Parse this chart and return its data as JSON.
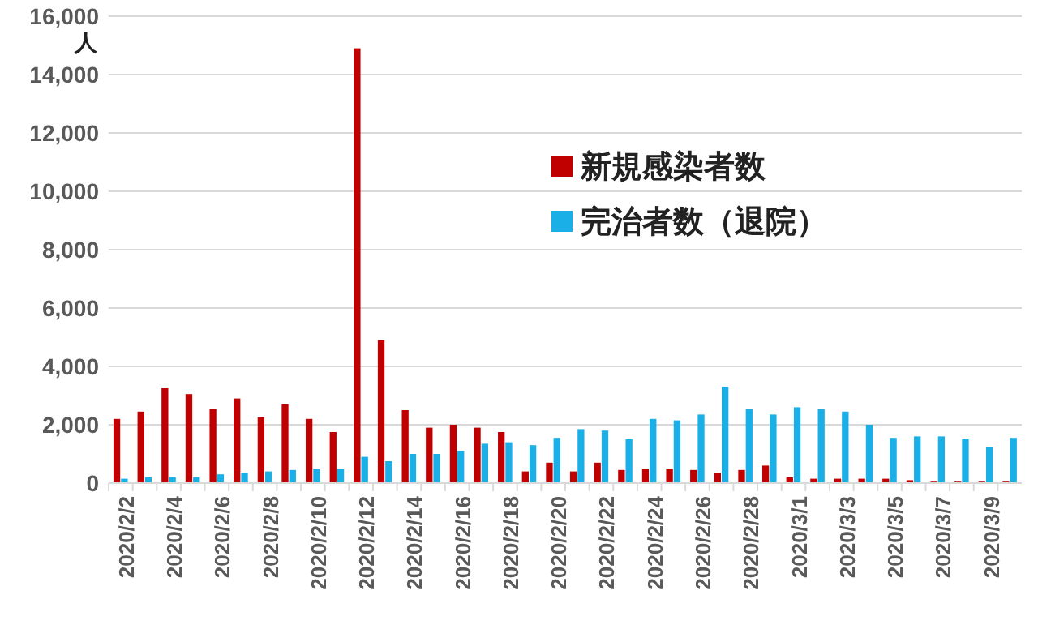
{
  "chart_data": {
    "type": "bar",
    "ylabel": "人",
    "categories": [
      "2020/2/2",
      null,
      "2020/2/4",
      null,
      "2020/2/6",
      null,
      "2020/2/8",
      null,
      "2020/2/10",
      null,
      "2020/2/12",
      null,
      "2020/2/14",
      null,
      "2020/2/16",
      null,
      "2020/2/18",
      null,
      "2020/2/20",
      null,
      "2020/2/22",
      null,
      "2020/2/24",
      null,
      "2020/2/26",
      null,
      "2020/2/28",
      null,
      "2020/3/1",
      null,
      "2020/3/3",
      null,
      "2020/3/5",
      null,
      "2020/3/7",
      null,
      "2020/3/9",
      null
    ],
    "series": [
      {
        "name": "新規感染者数",
        "color": "#c00000",
        "values": [
          2200,
          2450,
          3250,
          3050,
          2550,
          2900,
          2250,
          2700,
          2200,
          1750,
          14900,
          4900,
          2500,
          1900,
          2000,
          1900,
          1750,
          400,
          700,
          400,
          700,
          450,
          500,
          500,
          450,
          350,
          450,
          600,
          200,
          150,
          150,
          150,
          150,
          100,
          50,
          50,
          50,
          50
        ]
      },
      {
        "name": "完治者数（退院）",
        "color": "#1aafe6",
        "values": [
          150,
          200,
          200,
          200,
          300,
          350,
          400,
          450,
          500,
          500,
          900,
          750,
          1000,
          1000,
          1100,
          1350,
          1400,
          1300,
          1550,
          1850,
          1800,
          1500,
          2200,
          2150,
          2350,
          3300,
          2550,
          2350,
          2600,
          2550,
          2450,
          2000,
          1550,
          1600,
          1600,
          1500,
          1250,
          1550
        ]
      }
    ],
    "ylim": [
      0,
      16000
    ],
    "yticks": [
      0,
      {
        "value": 2000,
        "label": "2,000"
      },
      {
        "value": 4000,
        "label": "4,000"
      },
      {
        "value": 6000,
        "label": "6,000"
      },
      {
        "value": 8000,
        "label": "8,000"
      },
      {
        "value": 10000,
        "label": "10,000"
      },
      {
        "value": 12000,
        "label": "12,000"
      },
      {
        "value": 14000,
        "label": "14,000"
      },
      {
        "value": 16000,
        "label": "16,000"
      }
    ],
    "grid": "y",
    "legend": "top right"
  }
}
